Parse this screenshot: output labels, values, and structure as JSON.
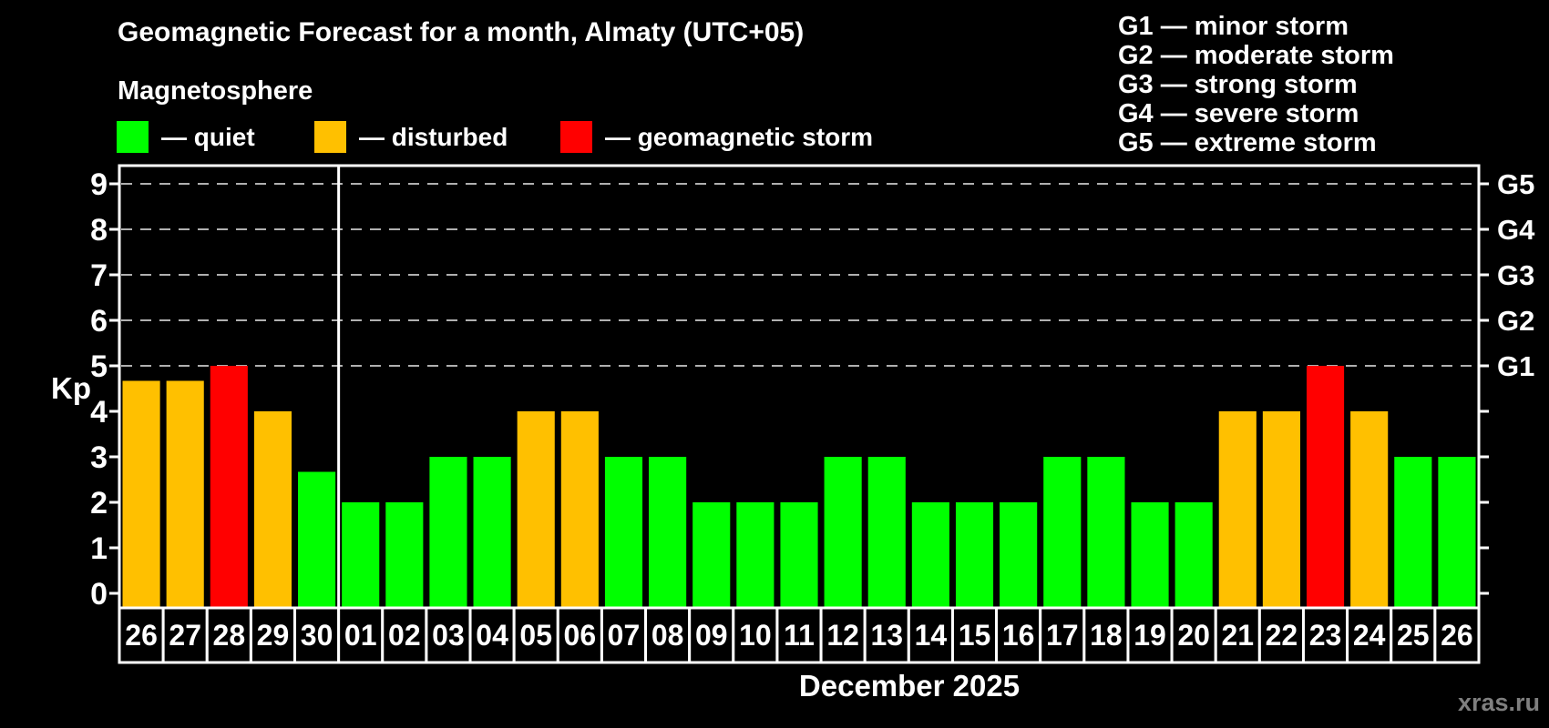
{
  "header": {
    "title": "Geomagnetic Forecast for a month, Almaty (UTC+05)",
    "subtitle": "Magnetosphere"
  },
  "legend": {
    "items": [
      {
        "label": "— quiet",
        "color_key": "quiet"
      },
      {
        "label": "— disturbed",
        "color_key": "disturbed"
      },
      {
        "label": "— geomagnetic storm",
        "color_key": "storm"
      }
    ]
  },
  "g_legend": {
    "items": [
      "G1 — minor storm",
      "G2 — moderate storm",
      "G3 — strong storm",
      "G4 — severe storm",
      "G5 — extreme storm"
    ]
  },
  "colors": {
    "quiet": "#00ff00",
    "disturbed": "#ffc000",
    "storm": "#ff0000",
    "grid": "#b0b0b0",
    "frame": "#ffffff",
    "background": "#000000",
    "watermark": "#7f7f7f"
  },
  "chart_data": {
    "type": "bar",
    "title": "Geomagnetic Forecast for a month, Almaty (UTC+05)",
    "xlabel": "December 2025",
    "ylabel": "Kp",
    "ylim": [
      0,
      9
    ],
    "yticks": [
      0,
      1,
      2,
      3,
      4,
      5,
      6,
      7,
      8,
      9
    ],
    "gridlines_at": [
      5,
      6,
      7,
      8,
      9
    ],
    "grid": "dashed horizontal at storm levels only",
    "legend_position": "top",
    "right_axis": [
      {
        "label": "G1",
        "kp": 5
      },
      {
        "label": "G2",
        "kp": 6
      },
      {
        "label": "G3",
        "kp": 7
      },
      {
        "label": "G4",
        "kp": 8
      },
      {
        "label": "G5",
        "kp": 9
      }
    ],
    "separator_at_slot_boundary": 5,
    "categories": [
      "26",
      "27",
      "28",
      "29",
      "30",
      "01",
      "02",
      "03",
      "04",
      "05",
      "06",
      "07",
      "08",
      "09",
      "10",
      "11",
      "12",
      "13",
      "14",
      "15",
      "16",
      "17",
      "18",
      "19",
      "20",
      "21",
      "22",
      "23",
      "24",
      "25",
      "26"
    ],
    "values": [
      4.67,
      4.67,
      5,
      4,
      2.67,
      2,
      2,
      3,
      3,
      4,
      4,
      3,
      3,
      2,
      2,
      2,
      3,
      3,
      2,
      2,
      2,
      3,
      3,
      2,
      2,
      4,
      4,
      5,
      4,
      3,
      3
    ],
    "statuses": [
      "disturbed",
      "disturbed",
      "storm",
      "disturbed",
      "quiet",
      "quiet",
      "quiet",
      "quiet",
      "quiet",
      "disturbed",
      "disturbed",
      "quiet",
      "quiet",
      "quiet",
      "quiet",
      "quiet",
      "quiet",
      "quiet",
      "quiet",
      "quiet",
      "quiet",
      "quiet",
      "quiet",
      "quiet",
      "quiet",
      "disturbed",
      "disturbed",
      "storm",
      "disturbed",
      "quiet",
      "quiet"
    ]
  },
  "watermark": "xras.ru"
}
